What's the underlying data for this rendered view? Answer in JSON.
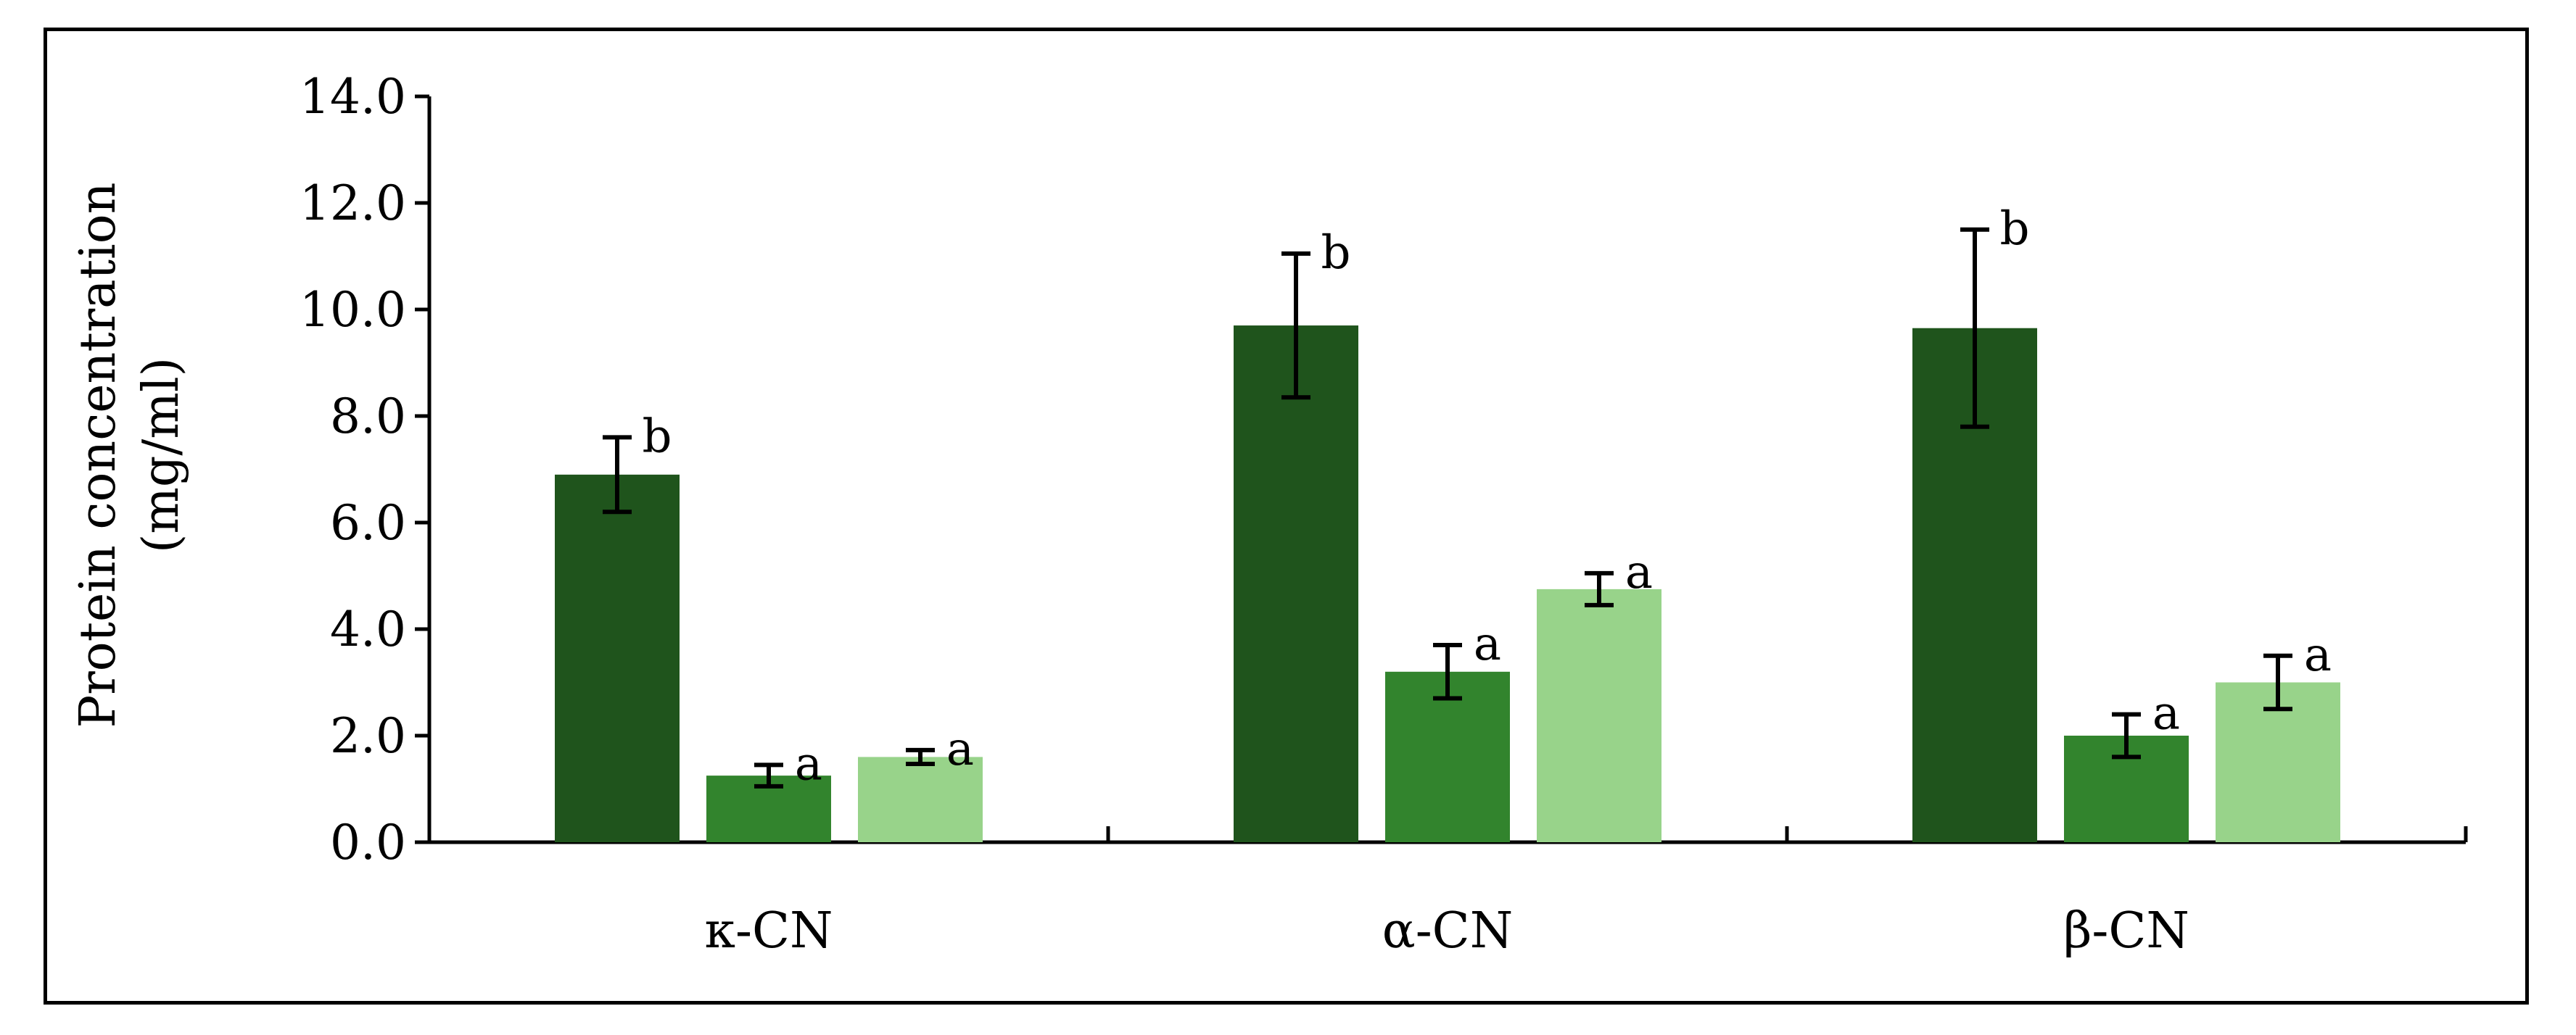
{
  "chart_data": {
    "type": "bar",
    "categories": [
      "κ-CN",
      "α-CN",
      "β-CN"
    ],
    "ylabel": [
      "Protein concentration",
      "(mg/ml)"
    ],
    "ylim": [
      0,
      14
    ],
    "yticks": [
      "0.0",
      "2.0",
      "4.0",
      "6.0",
      "8.0",
      "10.0",
      "12.0",
      "14.0"
    ],
    "grid": false,
    "legend": "none",
    "series": [
      {
        "color": "#1f541c",
        "values": [
          6.9,
          9.7,
          9.65
        ],
        "errors": [
          0.7,
          1.35,
          1.85
        ],
        "labels": [
          "b",
          "b",
          "b"
        ]
      },
      {
        "color": "#32842d",
        "values": [
          1.25,
          3.2,
          2.0
        ],
        "errors": [
          0.2,
          0.5,
          0.4
        ],
        "labels": [
          "a",
          "a",
          "a"
        ]
      },
      {
        "color": "#98d38a",
        "values": [
          1.6,
          4.75,
          3.0
        ],
        "errors": [
          0.13,
          0.3,
          0.5
        ],
        "labels": [
          "a",
          "a",
          "a"
        ]
      }
    ]
  }
}
